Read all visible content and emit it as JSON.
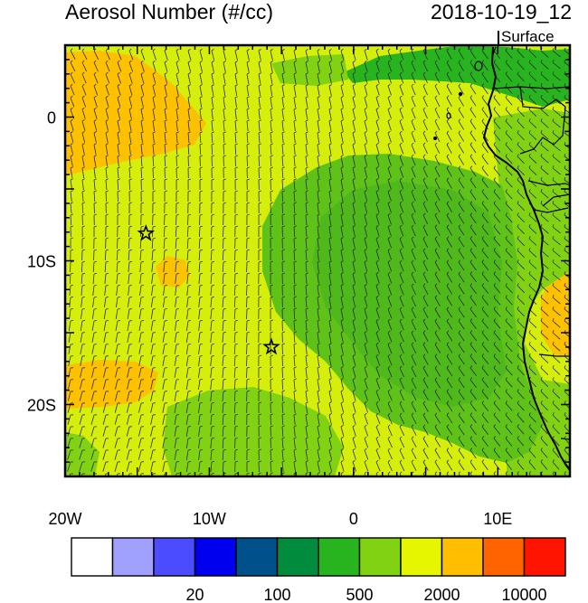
{
  "header": {
    "title": "Aerosol Number (#/cc)",
    "datetime": "2018-10-19_12",
    "level": "Surface"
  },
  "map": {
    "lon_range": [
      -20,
      15
    ],
    "lat_range": [
      -25,
      5
    ],
    "x_ticks": [
      {
        "lon": -20,
        "label": "20W"
      },
      {
        "lon": -10,
        "label": "10W"
      },
      {
        "lon": 0,
        "label": "0"
      },
      {
        "lon": 10,
        "label": "10E"
      }
    ],
    "y_ticks": [
      {
        "lat": 0,
        "label": "0"
      },
      {
        "lat": -10,
        "label": "10S"
      },
      {
        "lat": -20,
        "label": "20S"
      }
    ],
    "markers": [
      {
        "type": "star",
        "lon": -14.4,
        "lat": -8.1
      },
      {
        "type": "star",
        "lon": -5.7,
        "lat": -16.0
      }
    ]
  },
  "colorbar": {
    "colors": [
      "#ffffff",
      "#a0a0ff",
      "#4b4bff",
      "#0000ee",
      "#00508c",
      "#008c3c",
      "#28b41e",
      "#82d214",
      "#e6f500",
      "#ffbe00",
      "#ff6400",
      "#ff1400"
    ],
    "labels": [
      {
        "after_box": 2,
        "text": "20"
      },
      {
        "after_box": 4,
        "text": "100"
      },
      {
        "after_box": 6,
        "text": "500"
      },
      {
        "after_box": 8,
        "text": "2000"
      },
      {
        "after_box": 10,
        "text": "10000"
      }
    ]
  }
}
